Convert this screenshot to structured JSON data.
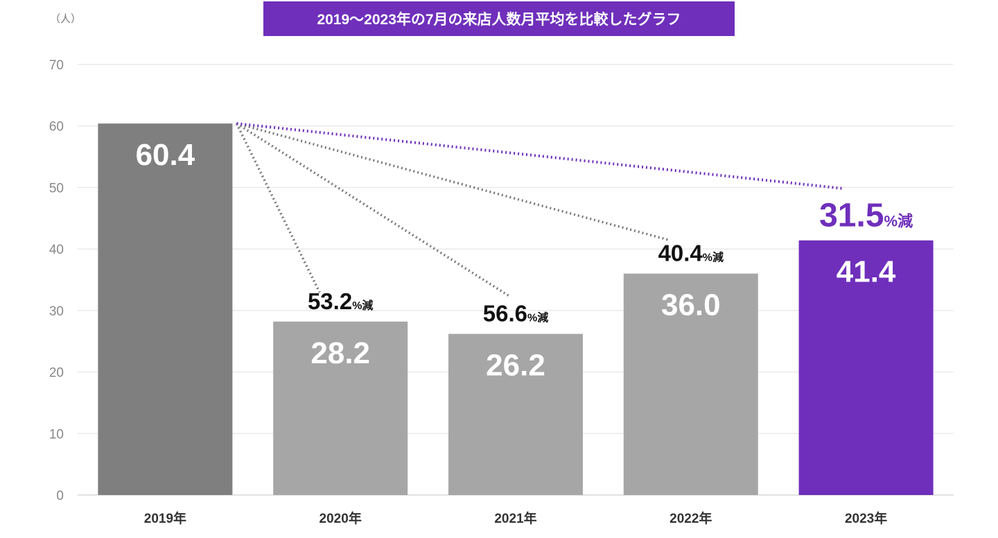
{
  "chart_data": {
    "type": "bar",
    "title": "2019～2023年の7月の来店人数月平均を比較したグラフ",
    "unit_label": "（人）",
    "categories": [
      "2019年",
      "2020年",
      "2021年",
      "2022年",
      "2023年"
    ],
    "values": [
      60.4,
      28.2,
      26.2,
      36.0,
      41.4
    ],
    "value_labels": [
      "60.4",
      "28.2",
      "26.2",
      "36.0",
      "41.4"
    ],
    "ylim": [
      0,
      70
    ],
    "yticks": [
      0,
      10,
      20,
      30,
      40,
      50,
      60,
      70
    ],
    "grid": true,
    "colors": {
      "baseline_bar": "#7f7f7f",
      "other_bar": "#a6a6a6",
      "highlight_bar": "#6f2fbb",
      "title_bg": "#6f2fbb",
      "dotted_gray": "#777777",
      "dotted_highlight": "#6f2fbb",
      "grid": "#e6e6e6"
    },
    "highlight_index": 4,
    "annotations": [
      {
        "index": 1,
        "value": "53.2",
        "unit": "%減"
      },
      {
        "index": 2,
        "value": "56.6",
        "unit": "%減"
      },
      {
        "index": 3,
        "value": "40.4",
        "unit": "%減"
      },
      {
        "index": 4,
        "value": "31.5",
        "unit": "%減"
      }
    ]
  }
}
